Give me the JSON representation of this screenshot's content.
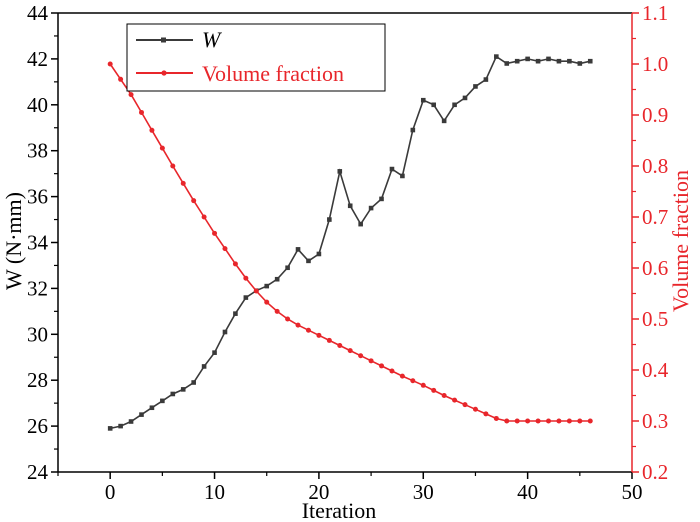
{
  "chart_data": {
    "type": "line",
    "xlabel": "Iteration",
    "ylabel_left": "W (N·mm)",
    "ylabel_right": "Volume fraction",
    "xlim": [
      -5,
      50
    ],
    "ylim_left": [
      24,
      44
    ],
    "ylim_right": [
      0.2,
      1.1
    ],
    "x_ticks": [
      0,
      10,
      20,
      30,
      40,
      50
    ],
    "y_ticks_left": [
      24,
      26,
      28,
      30,
      32,
      34,
      36,
      38,
      40,
      42,
      44
    ],
    "y_ticks_right": [
      0.2,
      0.3,
      0.4,
      0.5,
      0.6,
      0.7,
      0.8,
      0.9,
      1.0,
      1.1
    ],
    "grid": false,
    "legend_placement": "top-left",
    "colors": {
      "w": "#3a3a3a",
      "volume_fraction": "#e8262b"
    },
    "series": [
      {
        "name": "W",
        "axis": "left",
        "marker": "square",
        "x": [
          0,
          1,
          2,
          3,
          4,
          5,
          6,
          7,
          8,
          9,
          10,
          11,
          12,
          13,
          14,
          15,
          16,
          17,
          18,
          19,
          20,
          21,
          22,
          23,
          24,
          25,
          26,
          27,
          28,
          29,
          30,
          31,
          32,
          33,
          34,
          35,
          36,
          37,
          38,
          39,
          40,
          41,
          42,
          43,
          44,
          45,
          46
        ],
        "values": [
          25.9,
          26.0,
          26.2,
          26.5,
          26.8,
          27.1,
          27.4,
          27.6,
          27.9,
          28.6,
          29.2,
          30.1,
          30.9,
          31.6,
          31.9,
          32.1,
          32.4,
          32.9,
          33.7,
          33.2,
          33.5,
          35.0,
          37.1,
          35.6,
          34.8,
          35.5,
          35.9,
          37.2,
          36.9,
          38.9,
          40.2,
          40.0,
          39.3,
          40.0,
          40.3,
          40.8,
          41.1,
          42.1,
          41.8,
          41.9,
          42.0,
          41.9,
          42.0,
          41.9,
          41.9,
          41.8,
          41.9
        ]
      },
      {
        "name": "Volume fraction",
        "axis": "right",
        "marker": "circle",
        "x": [
          0,
          1,
          2,
          3,
          4,
          5,
          6,
          7,
          8,
          9,
          10,
          11,
          12,
          13,
          14,
          15,
          16,
          17,
          18,
          19,
          20,
          21,
          22,
          23,
          24,
          25,
          26,
          27,
          28,
          29,
          30,
          31,
          32,
          33,
          34,
          35,
          36,
          37,
          38,
          39,
          40,
          41,
          42,
          43,
          44,
          45,
          46
        ],
        "values": [
          1.0,
          0.97,
          0.94,
          0.905,
          0.87,
          0.835,
          0.8,
          0.766,
          0.732,
          0.7,
          0.668,
          0.638,
          0.608,
          0.58,
          0.555,
          0.533,
          0.515,
          0.5,
          0.488,
          0.478,
          0.468,
          0.458,
          0.448,
          0.438,
          0.428,
          0.418,
          0.408,
          0.398,
          0.388,
          0.379,
          0.37,
          0.36,
          0.35,
          0.341,
          0.332,
          0.323,
          0.314,
          0.305,
          0.3,
          0.3,
          0.3,
          0.3,
          0.3,
          0.3,
          0.3,
          0.3,
          0.3
        ]
      }
    ]
  }
}
